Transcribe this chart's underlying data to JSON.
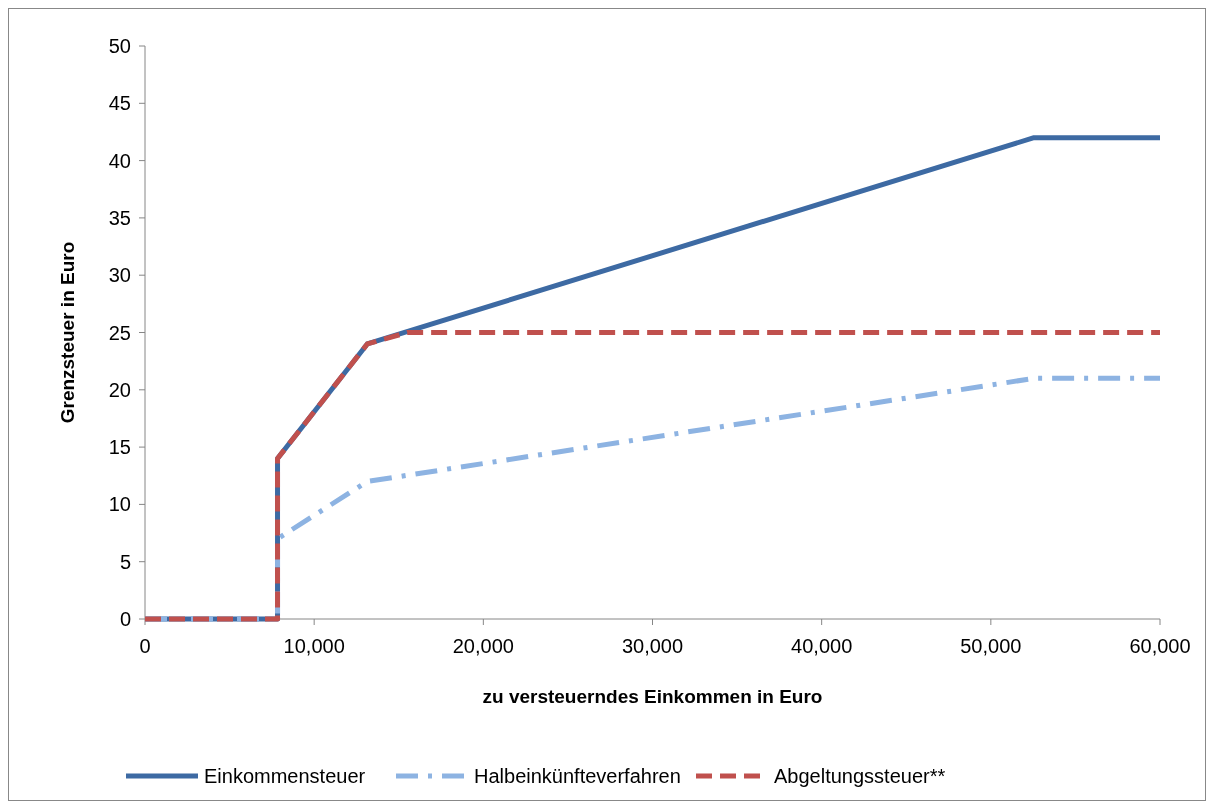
{
  "chart_data": {
    "type": "line",
    "xlabel": "zu versteuerndes Einkommen in Euro",
    "ylabel": "Grenzsteuer in Euro",
    "xlim": [
      0,
      60000
    ],
    "xticks": [
      0,
      {
        "value": 10000,
        "label": "10,000"
      },
      {
        "value": 20000,
        "label": "20,000"
      },
      {
        "value": 30000,
        "label": "30,000"
      },
      {
        "value": 40000,
        "label": "40,000"
      },
      {
        "value": 50000,
        "label": "50,000"
      },
      {
        "value": 60000,
        "label": "60,000"
      }
    ],
    "ylim": [
      0,
      50
    ],
    "yticks": [
      0,
      5,
      10,
      15,
      20,
      25,
      30,
      35,
      40,
      45,
      50
    ],
    "grid": false,
    "legend": "bottom",
    "series": [
      {
        "name": "Einkommensteuer",
        "color": "#3d6aa3",
        "line_style": "solid",
        "x": [
          0,
          7834,
          7834,
          13139,
          52551,
          60000
        ],
        "values": [
          0,
          0,
          14,
          24,
          42,
          42
        ]
      },
      {
        "name": "Halbeinkünfteverfahren",
        "color": "#8db3e2",
        "line_style": "dashdot",
        "x": [
          0,
          7834,
          7834,
          13139,
          52551,
          60000
        ],
        "values": [
          0,
          0,
          7,
          12,
          21,
          21
        ]
      },
      {
        "name": "Abgeltungssteuer**",
        "color": "#c0504d",
        "line_style": "dashed",
        "x": [
          0,
          7834,
          7834,
          13139,
          15500,
          60000
        ],
        "values": [
          0,
          0,
          14,
          24,
          25,
          25
        ]
      }
    ]
  }
}
